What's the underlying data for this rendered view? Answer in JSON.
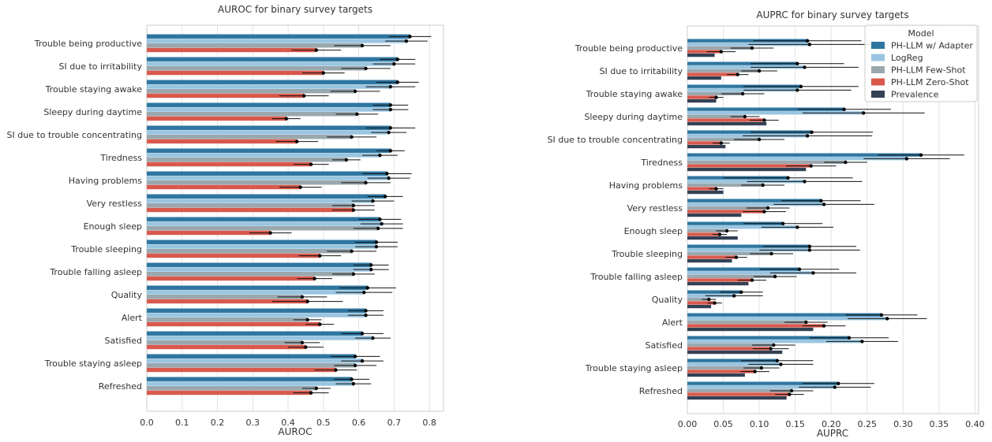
{
  "colors": {
    "ph_llm_adapter": "#2e76a0",
    "logreg": "#9ac5e0",
    "ph_llm_few_shot": "#9aa8ae",
    "ph_llm_zero_shot": "#d8594c",
    "prevalence": "#334155",
    "grid": "#e3e3e3",
    "frame": "#cccccc"
  },
  "chart_data": [
    {
      "type": "bar",
      "orientation": "horizontal",
      "title": "AUROC for binary survey targets",
      "xlabel": "AUROC",
      "ylabel": "",
      "xlim": [
        0.0,
        0.84
      ],
      "xticks": [
        "0.0",
        "0.1",
        "0.2",
        "0.3",
        "0.4",
        "0.5",
        "0.6",
        "0.7",
        "0.8"
      ],
      "grid": true,
      "categories": [
        "Trouble being productive",
        "SI due to irritability",
        "Trouble staying awake",
        "Sleepy during daytime",
        "SI due to trouble concentrating",
        "Tiredness",
        "Having problems",
        "Very restless",
        "Enough sleep",
        "Trouble sleeping",
        "Trouble falling asleep",
        "Quality",
        "Alert",
        "Satisfied",
        "Trouble staying asleep",
        "Refreshed"
      ],
      "series": [
        {
          "name": "PH-LLM w/ Adapter",
          "color_key": "ph_llm_adapter",
          "values": [
            0.745,
            0.71,
            0.71,
            0.69,
            0.69,
            0.69,
            0.68,
            0.675,
            0.66,
            0.65,
            0.635,
            0.625,
            0.62,
            0.61,
            0.59,
            0.58
          ],
          "err": [
            0.06,
            0.05,
            0.06,
            0.05,
            0.07,
            0.04,
            0.07,
            0.05,
            0.06,
            0.06,
            0.05,
            0.08,
            0.05,
            0.06,
            0.07,
            0.05
          ]
        },
        {
          "name": "LogReg",
          "color_key": "logreg",
          "values": [
            0.735,
            0.7,
            0.69,
            0.69,
            0.685,
            0.66,
            0.685,
            0.64,
            0.665,
            0.65,
            0.635,
            0.615,
            0.62,
            0.64,
            0.61,
            0.585
          ],
          "err": [
            0.06,
            0.06,
            0.07,
            0.05,
            0.05,
            0.05,
            0.06,
            0.06,
            0.06,
            0.06,
            0.05,
            0.08,
            0.05,
            0.05,
            0.06,
            0.05
          ]
        },
        {
          "name": "PH-LLM Few-Shot",
          "color_key": "ph_llm_few_shot",
          "values": [
            0.61,
            0.62,
            0.59,
            0.595,
            0.58,
            0.565,
            0.62,
            0.585,
            0.655,
            0.58,
            0.585,
            0.44,
            0.455,
            0.44,
            0.59,
            0.48
          ],
          "err": [
            0.08,
            0.07,
            0.07,
            0.06,
            0.07,
            0.04,
            0.07,
            0.06,
            0.07,
            0.07,
            0.06,
            0.07,
            0.04,
            0.05,
            0.06,
            0.04
          ]
        },
        {
          "name": "PH-LLM Zero-Shot",
          "color_key": "ph_llm_zero_shot",
          "values": [
            0.48,
            0.5,
            0.445,
            0.395,
            0.425,
            0.465,
            0.435,
            0.585,
            0.35,
            0.49,
            0.475,
            0.455,
            0.49,
            0.45,
            0.535,
            0.465
          ],
          "err": [
            0.07,
            0.06,
            0.07,
            0.04,
            0.06,
            0.05,
            0.06,
            0.06,
            0.06,
            0.06,
            0.05,
            0.1,
            0.04,
            0.05,
            0.06,
            0.05
          ]
        }
      ]
    },
    {
      "type": "bar",
      "orientation": "horizontal",
      "title": "AUPRC for binary survey targets",
      "xlabel": "AUPRC",
      "ylabel": "",
      "xlim": [
        0.0,
        0.405
      ],
      "xticks": [
        "0.00",
        "0.05",
        "0.10",
        "0.15",
        "0.20",
        "0.25",
        "0.30",
        "0.35",
        "0.40"
      ],
      "grid": true,
      "legend": {
        "title": "Model",
        "placement": "top-right",
        "entries": [
          {
            "label": "PH-LLM w/ Adapter",
            "color_key": "ph_llm_adapter"
          },
          {
            "label": "LogReg",
            "color_key": "logreg"
          },
          {
            "label": "PH-LLM Few-Shot",
            "color_key": "ph_llm_few_shot"
          },
          {
            "label": "PH-LLM Zero-Shot",
            "color_key": "ph_llm_zero_shot"
          },
          {
            "label": "Prevalence",
            "color_key": "prevalence"
          }
        ]
      },
      "categories": [
        "Trouble being productive",
        "SI due to irritability",
        "Trouble staying awake",
        "Sleepy during daytime",
        "SI due to trouble concentrating",
        "Tiredness",
        "Having problems",
        "Very restless",
        "Enough sleep",
        "Trouble sleeping",
        "Trouble falling asleep",
        "Quality",
        "Alert",
        "Satisfied",
        "Trouble staying asleep",
        "Refreshed"
      ],
      "series": [
        {
          "name": "PH-LLM w/ Adapter",
          "color_key": "ph_llm_adapter",
          "values": [
            0.167,
            0.153,
            0.158,
            0.218,
            0.173,
            0.325,
            0.14,
            0.186,
            0.133,
            0.17,
            0.156,
            0.075,
            0.27,
            0.225,
            0.125,
            0.21
          ],
          "err": [
            0.075,
            0.065,
            0.08,
            0.065,
            0.085,
            0.06,
            0.09,
            0.055,
            0.055,
            0.065,
            0.055,
            0.03,
            0.05,
            0.055,
            0.05,
            0.05
          ]
        },
        {
          "name": "LogReg",
          "color_key": "logreg",
          "values": [
            0.17,
            0.163,
            0.153,
            0.245,
            0.167,
            0.305,
            0.163,
            0.19,
            0.153,
            0.17,
            0.175,
            0.065,
            0.278,
            0.243,
            0.13,
            0.205
          ],
          "err": [
            0.085,
            0.075,
            0.075,
            0.085,
            0.09,
            0.06,
            0.08,
            0.07,
            0.05,
            0.07,
            0.06,
            0.04,
            0.055,
            0.05,
            0.045,
            0.05
          ]
        },
        {
          "name": "PH-LLM Few-Shot",
          "color_key": "ph_llm_few_shot",
          "values": [
            0.09,
            0.1,
            0.077,
            0.08,
            0.1,
            0.22,
            0.105,
            0.112,
            0.055,
            0.117,
            0.122,
            0.03,
            0.165,
            0.12,
            0.103,
            0.145
          ],
          "err": [
            0.03,
            0.025,
            0.03,
            0.02,
            0.035,
            0.03,
            0.03,
            0.03,
            0.015,
            0.03,
            0.03,
            0.01,
            0.03,
            0.03,
            0.025,
            0.03
          ]
        },
        {
          "name": "PH-LLM Zero-Shot",
          "color_key": "ph_llm_zero_shot",
          "values": [
            0.047,
            0.07,
            0.04,
            0.107,
            0.047,
            0.172,
            0.04,
            0.107,
            0.045,
            0.068,
            0.09,
            0.038,
            0.19,
            0.116,
            0.094,
            0.142
          ],
          "err": [
            0.02,
            0.015,
            0.01,
            0.02,
            0.012,
            0.035,
            0.01,
            0.03,
            0.01,
            0.015,
            0.02,
            0.01,
            0.03,
            0.025,
            0.02,
            0.02
          ]
        },
        {
          "name": "Prevalence",
          "color_key": "prevalence",
          "values": [
            0.038,
            0.047,
            0.04,
            0.11,
            0.053,
            0.165,
            0.05,
            0.075,
            0.07,
            0.062,
            0.085,
            0.033,
            0.175,
            0.132,
            0.08,
            0.138
          ],
          "err": [
            0.0,
            0.0,
            0.0,
            0.0,
            0.0,
            0.0,
            0.0,
            0.0,
            0.0,
            0.0,
            0.0,
            0.0,
            0.0,
            0.0,
            0.0,
            0.0
          ]
        }
      ]
    }
  ]
}
